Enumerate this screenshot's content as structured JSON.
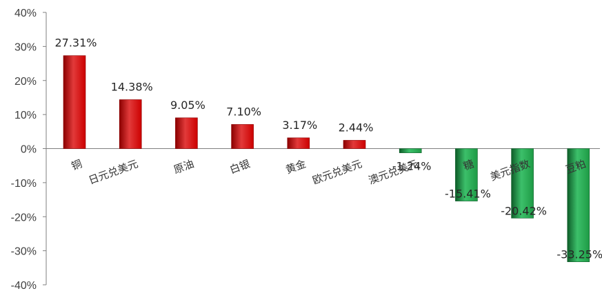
{
  "chart_data": {
    "type": "bar",
    "title": "",
    "xlabel": "",
    "ylabel": "",
    "ylim": [
      -40,
      40
    ],
    "yticks": [
      40,
      30,
      20,
      10,
      0,
      -10,
      -20,
      -30,
      -40
    ],
    "ytick_labels": [
      "40%",
      "30%",
      "20%",
      "10%",
      "0%",
      "-10%",
      "-20%",
      "-30%",
      "-40%"
    ],
    "grid": false,
    "legend": "none",
    "categories": [
      "铜",
      "日元兑美元",
      "原油",
      "白银",
      "黄金",
      "欧元兑美元",
      "澳元兑美元",
      "糖",
      "美元指数",
      "豆粕"
    ],
    "values": [
      27.31,
      14.38,
      9.05,
      7.1,
      3.17,
      2.44,
      -1.24,
      -15.41,
      -20.42,
      -33.25
    ],
    "data_labels": [
      "27.31%",
      "14.38%",
      "9.05%",
      "7.10%",
      "3.17%",
      "2.44%",
      "-1.24%",
      "-15.41%",
      "-20.42%",
      "-33.25%"
    ],
    "colors": {
      "positive": "#cc0000",
      "positive_dark": "#8b0000",
      "positive_light": "#e23a3a",
      "negative": "#1e9a45",
      "negative_dark": "#0d5c28",
      "negative_light": "#3cc06a",
      "axis": "#7f7f7f"
    }
  }
}
